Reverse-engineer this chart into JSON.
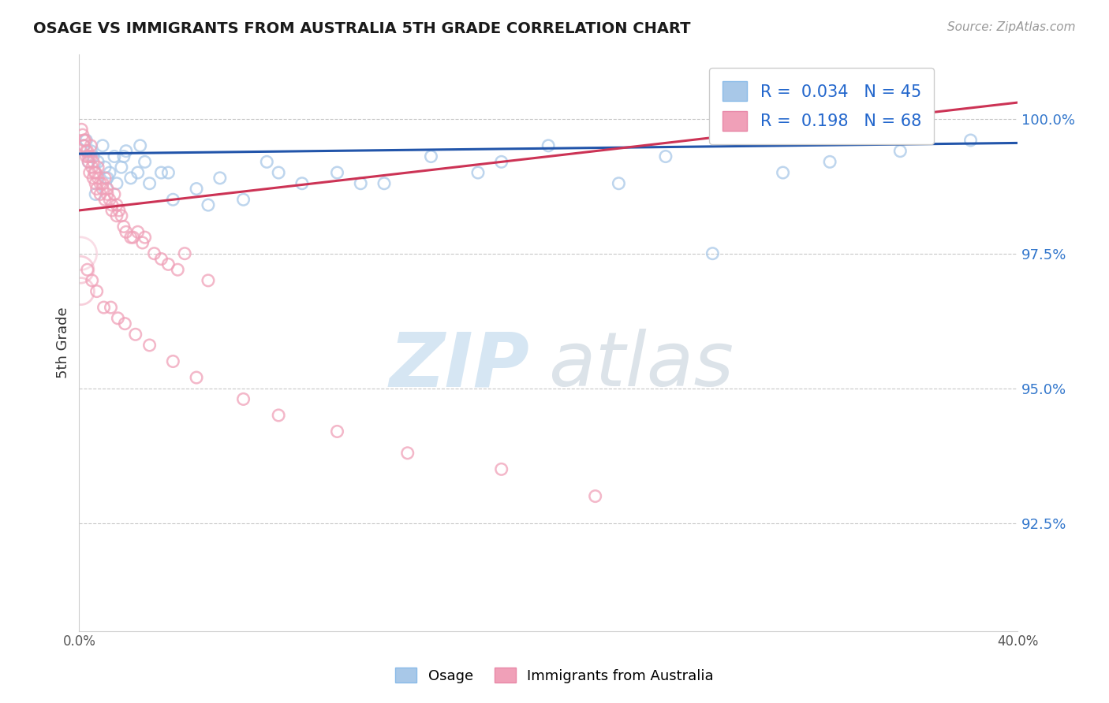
{
  "title": "OSAGE VS IMMIGRANTS FROM AUSTRALIA 5TH GRADE CORRELATION CHART",
  "source": "Source: ZipAtlas.com",
  "ylabel": "5th Grade",
  "x_range": [
    0.0,
    40.0
  ],
  "y_range": [
    90.5,
    101.2
  ],
  "blue_R": 0.034,
  "blue_N": 45,
  "pink_R": 0.198,
  "pink_N": 68,
  "blue_color": "#a8c8e8",
  "pink_color": "#f0a0b8",
  "blue_line_color": "#2255aa",
  "pink_line_color": "#cc3355",
  "legend_label_blue": "Osage",
  "legend_label_pink": "Immigrants from Australia",
  "blue_trend_x0": 0.0,
  "blue_trend_y0": 99.35,
  "blue_trend_x1": 40.0,
  "blue_trend_y1": 99.55,
  "pink_trend_x0": 0.0,
  "pink_trend_y0": 98.3,
  "pink_trend_x1": 40.0,
  "pink_trend_y1": 100.3,
  "blue_scatter_x": [
    0.2,
    0.3,
    0.5,
    0.6,
    0.8,
    1.0,
    1.1,
    1.3,
    1.5,
    1.6,
    1.8,
    2.0,
    2.2,
    2.5,
    2.8,
    3.0,
    3.5,
    4.0,
    5.0,
    6.0,
    7.0,
    8.0,
    9.5,
    11.0,
    13.0,
    15.0,
    17.0,
    20.0,
    23.0,
    27.0,
    32.0,
    35.0,
    38.0,
    0.4,
    0.7,
    1.2,
    1.9,
    2.6,
    3.8,
    5.5,
    8.5,
    12.0,
    18.0,
    25.0,
    30.0
  ],
  "blue_scatter_y": [
    99.5,
    99.6,
    99.4,
    99.3,
    99.2,
    99.5,
    99.1,
    99.0,
    99.3,
    98.8,
    99.1,
    99.4,
    98.9,
    99.0,
    99.2,
    98.8,
    99.0,
    98.5,
    98.7,
    98.9,
    98.5,
    99.2,
    98.8,
    99.0,
    98.8,
    99.3,
    99.0,
    99.5,
    98.8,
    97.5,
    99.2,
    99.4,
    99.6,
    99.2,
    98.6,
    98.9,
    99.3,
    99.5,
    99.0,
    98.4,
    99.0,
    98.8,
    99.2,
    99.3,
    99.0
  ],
  "pink_scatter_x": [
    0.1,
    0.15,
    0.2,
    0.25,
    0.3,
    0.35,
    0.4,
    0.45,
    0.5,
    0.55,
    0.6,
    0.65,
    0.7,
    0.75,
    0.8,
    0.9,
    1.0,
    1.1,
    1.2,
    1.3,
    1.4,
    1.5,
    1.6,
    1.7,
    1.8,
    2.0,
    2.2,
    2.5,
    2.8,
    3.2,
    3.8,
    4.5,
    5.5,
    0.2,
    0.3,
    0.4,
    0.5,
    0.6,
    0.7,
    0.8,
    0.9,
    1.0,
    1.1,
    1.2,
    1.4,
    1.6,
    1.9,
    2.3,
    2.7,
    3.5,
    4.2,
    0.35,
    0.55,
    0.75,
    1.05,
    1.35,
    1.65,
    1.95,
    2.4,
    3.0,
    4.0,
    5.0,
    7.0,
    8.5,
    11.0,
    14.0,
    18.0,
    22.0
  ],
  "pink_scatter_y": [
    99.8,
    99.7,
    99.5,
    99.6,
    99.3,
    99.4,
    99.2,
    99.0,
    99.3,
    99.1,
    98.9,
    99.0,
    98.8,
    98.7,
    98.9,
    98.6,
    98.8,
    98.5,
    98.7,
    98.5,
    98.3,
    98.6,
    98.4,
    98.3,
    98.2,
    97.9,
    97.8,
    97.9,
    97.8,
    97.5,
    97.3,
    97.5,
    97.0,
    99.6,
    99.4,
    99.3,
    99.5,
    99.2,
    99.0,
    99.1,
    98.8,
    98.7,
    98.9,
    98.6,
    98.4,
    98.2,
    98.0,
    97.8,
    97.7,
    97.4,
    97.2,
    97.2,
    97.0,
    96.8,
    96.5,
    96.5,
    96.3,
    96.2,
    96.0,
    95.8,
    95.5,
    95.2,
    94.8,
    94.5,
    94.2,
    93.8,
    93.5,
    93.0
  ]
}
